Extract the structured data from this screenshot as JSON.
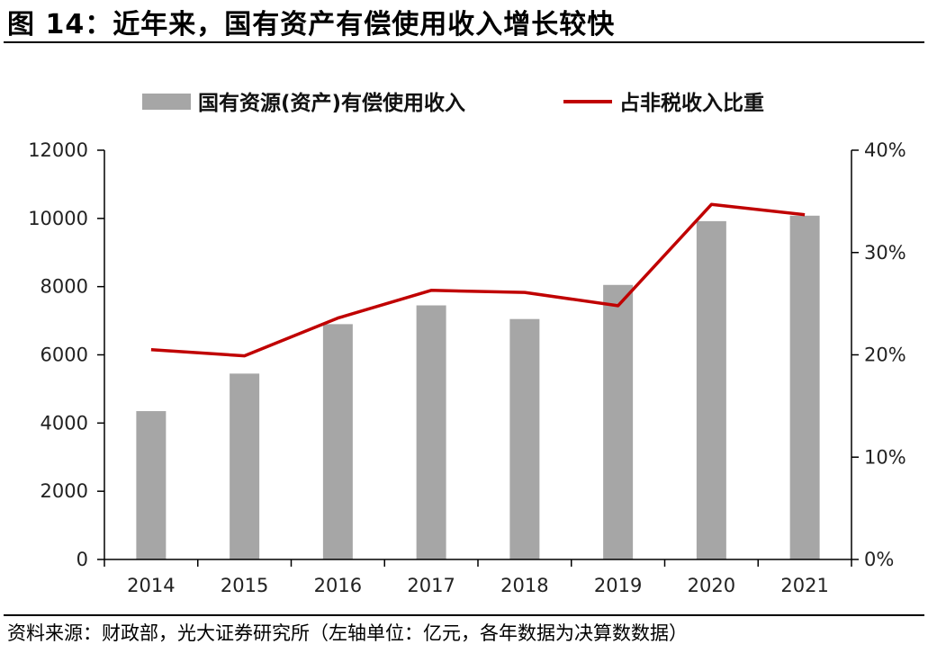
{
  "header": {
    "figure_title": "图 14：近年来，国有资产有偿使用收入增长较快"
  },
  "footer": {
    "source": "资料来源：财政部，光大证券研究所（左轴单位：亿元，各年数据为决算数数据）"
  },
  "chart_data": {
    "type": "bar",
    "categories": [
      "2014",
      "2015",
      "2016",
      "2017",
      "2018",
      "2019",
      "2020",
      "2021"
    ],
    "series": [
      {
        "name": "国有资源(资产)有偿使用收入",
        "kind": "bar",
        "axis": "left",
        "color": "#a6a6a6",
        "values": [
          4350,
          5450,
          6900,
          7450,
          7050,
          8050,
          9920,
          10080
        ]
      },
      {
        "name": "占非税收入比重",
        "kind": "line",
        "axis": "right",
        "color": "#c00000",
        "values": [
          0.205,
          0.199,
          0.236,
          0.263,
          0.261,
          0.248,
          0.347,
          0.337
        ]
      }
    ],
    "y_left": {
      "min": 0,
      "max": 12000,
      "ticks": [
        "0",
        "2000",
        "4000",
        "6000",
        "8000",
        "10000",
        "12000"
      ]
    },
    "y_right": {
      "min": 0,
      "max": 0.4,
      "ticks": [
        "0%",
        "10%",
        "20%",
        "30%",
        "40%"
      ]
    },
    "grid": false,
    "legend_position": "top"
  }
}
